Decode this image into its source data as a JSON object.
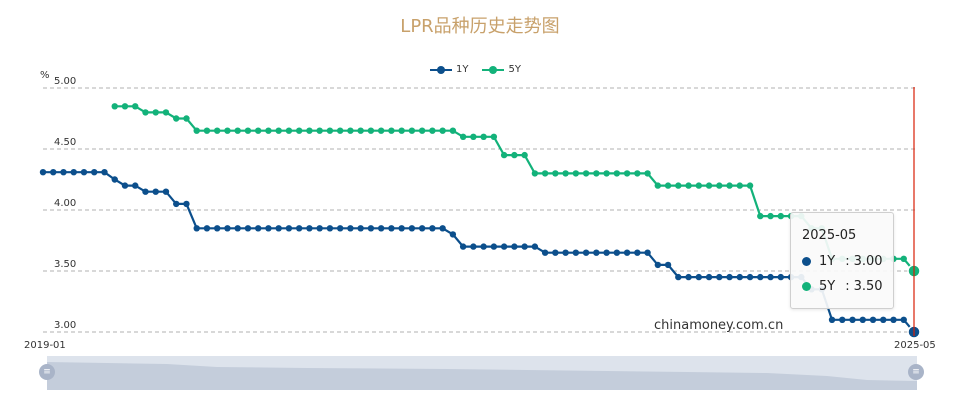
{
  "title": "LPR品种历史走势图",
  "unit": "%",
  "watermark": "chinamoney.com.cn",
  "legend": [
    {
      "name": "1Y",
      "color": "#0c4f8c"
    },
    {
      "name": "5Y",
      "color": "#13b27a"
    }
  ],
  "tooltip": {
    "title": "2025-05",
    "rows": [
      {
        "name": "1Y",
        "value": "3.00",
        "color": "#0c4f8c"
      },
      {
        "name": "5Y",
        "value": "3.50",
        "color": "#13b27a"
      }
    ]
  },
  "zoom": {
    "start_icon": "zoom-handle-start-icon",
    "end_icon": "zoom-handle-end-icon",
    "handle_glyph": "≡"
  },
  "colors": {
    "grid": "#b0b0b0",
    "cursor": "#d81e06"
  },
  "chart_data": {
    "type": "line",
    "x_start_label": "2019-01",
    "x_end_label": "2025-05",
    "ylim": [
      3.0,
      5.0
    ],
    "ytick_labels": [
      "5.00",
      "4.50",
      "4.00",
      "3.50",
      "3.00"
    ],
    "yticks": [
      5.0,
      4.5,
      4.0,
      3.5,
      3.0
    ],
    "grid": true,
    "legend_position": "top",
    "series": [
      {
        "name": "1Y",
        "color": "#0c4f8c",
        "values": [
          4.31,
          4.31,
          4.31,
          4.31,
          4.31,
          4.31,
          4.31,
          4.25,
          4.2,
          4.2,
          4.15,
          4.15,
          4.15,
          4.05,
          4.05,
          3.85,
          3.85,
          3.85,
          3.85,
          3.85,
          3.85,
          3.85,
          3.85,
          3.85,
          3.85,
          3.85,
          3.85,
          3.85,
          3.85,
          3.85,
          3.85,
          3.85,
          3.85,
          3.85,
          3.85,
          3.85,
          3.85,
          3.85,
          3.85,
          3.85,
          3.8,
          3.7,
          3.7,
          3.7,
          3.7,
          3.7,
          3.7,
          3.7,
          3.7,
          3.65,
          3.65,
          3.65,
          3.65,
          3.65,
          3.65,
          3.65,
          3.65,
          3.65,
          3.65,
          3.65,
          3.55,
          3.55,
          3.45,
          3.45,
          3.45,
          3.45,
          3.45,
          3.45,
          3.45,
          3.45,
          3.45,
          3.45,
          3.45,
          3.45,
          3.45,
          3.35,
          3.35,
          3.1,
          3.1,
          3.1,
          3.1,
          3.1,
          3.1,
          3.1,
          3.1,
          3.0
        ]
      },
      {
        "name": "5Y",
        "color": "#13b27a",
        "values": [
          null,
          null,
          null,
          null,
          null,
          null,
          null,
          4.85,
          4.85,
          4.85,
          4.8,
          4.8,
          4.8,
          4.75,
          4.75,
          4.65,
          4.65,
          4.65,
          4.65,
          4.65,
          4.65,
          4.65,
          4.65,
          4.65,
          4.65,
          4.65,
          4.65,
          4.65,
          4.65,
          4.65,
          4.65,
          4.65,
          4.65,
          4.65,
          4.65,
          4.65,
          4.65,
          4.65,
          4.65,
          4.65,
          4.65,
          4.6,
          4.6,
          4.6,
          4.6,
          4.45,
          4.45,
          4.45,
          4.3,
          4.3,
          4.3,
          4.3,
          4.3,
          4.3,
          4.3,
          4.3,
          4.3,
          4.3,
          4.3,
          4.3,
          4.2,
          4.2,
          4.2,
          4.2,
          4.2,
          4.2,
          4.2,
          4.2,
          4.2,
          4.2,
          3.95,
          3.95,
          3.95,
          3.95,
          3.95,
          3.85,
          3.85,
          3.6,
          3.6,
          3.6,
          3.6,
          3.6,
          3.6,
          3.6,
          3.6,
          3.5
        ]
      }
    ]
  }
}
